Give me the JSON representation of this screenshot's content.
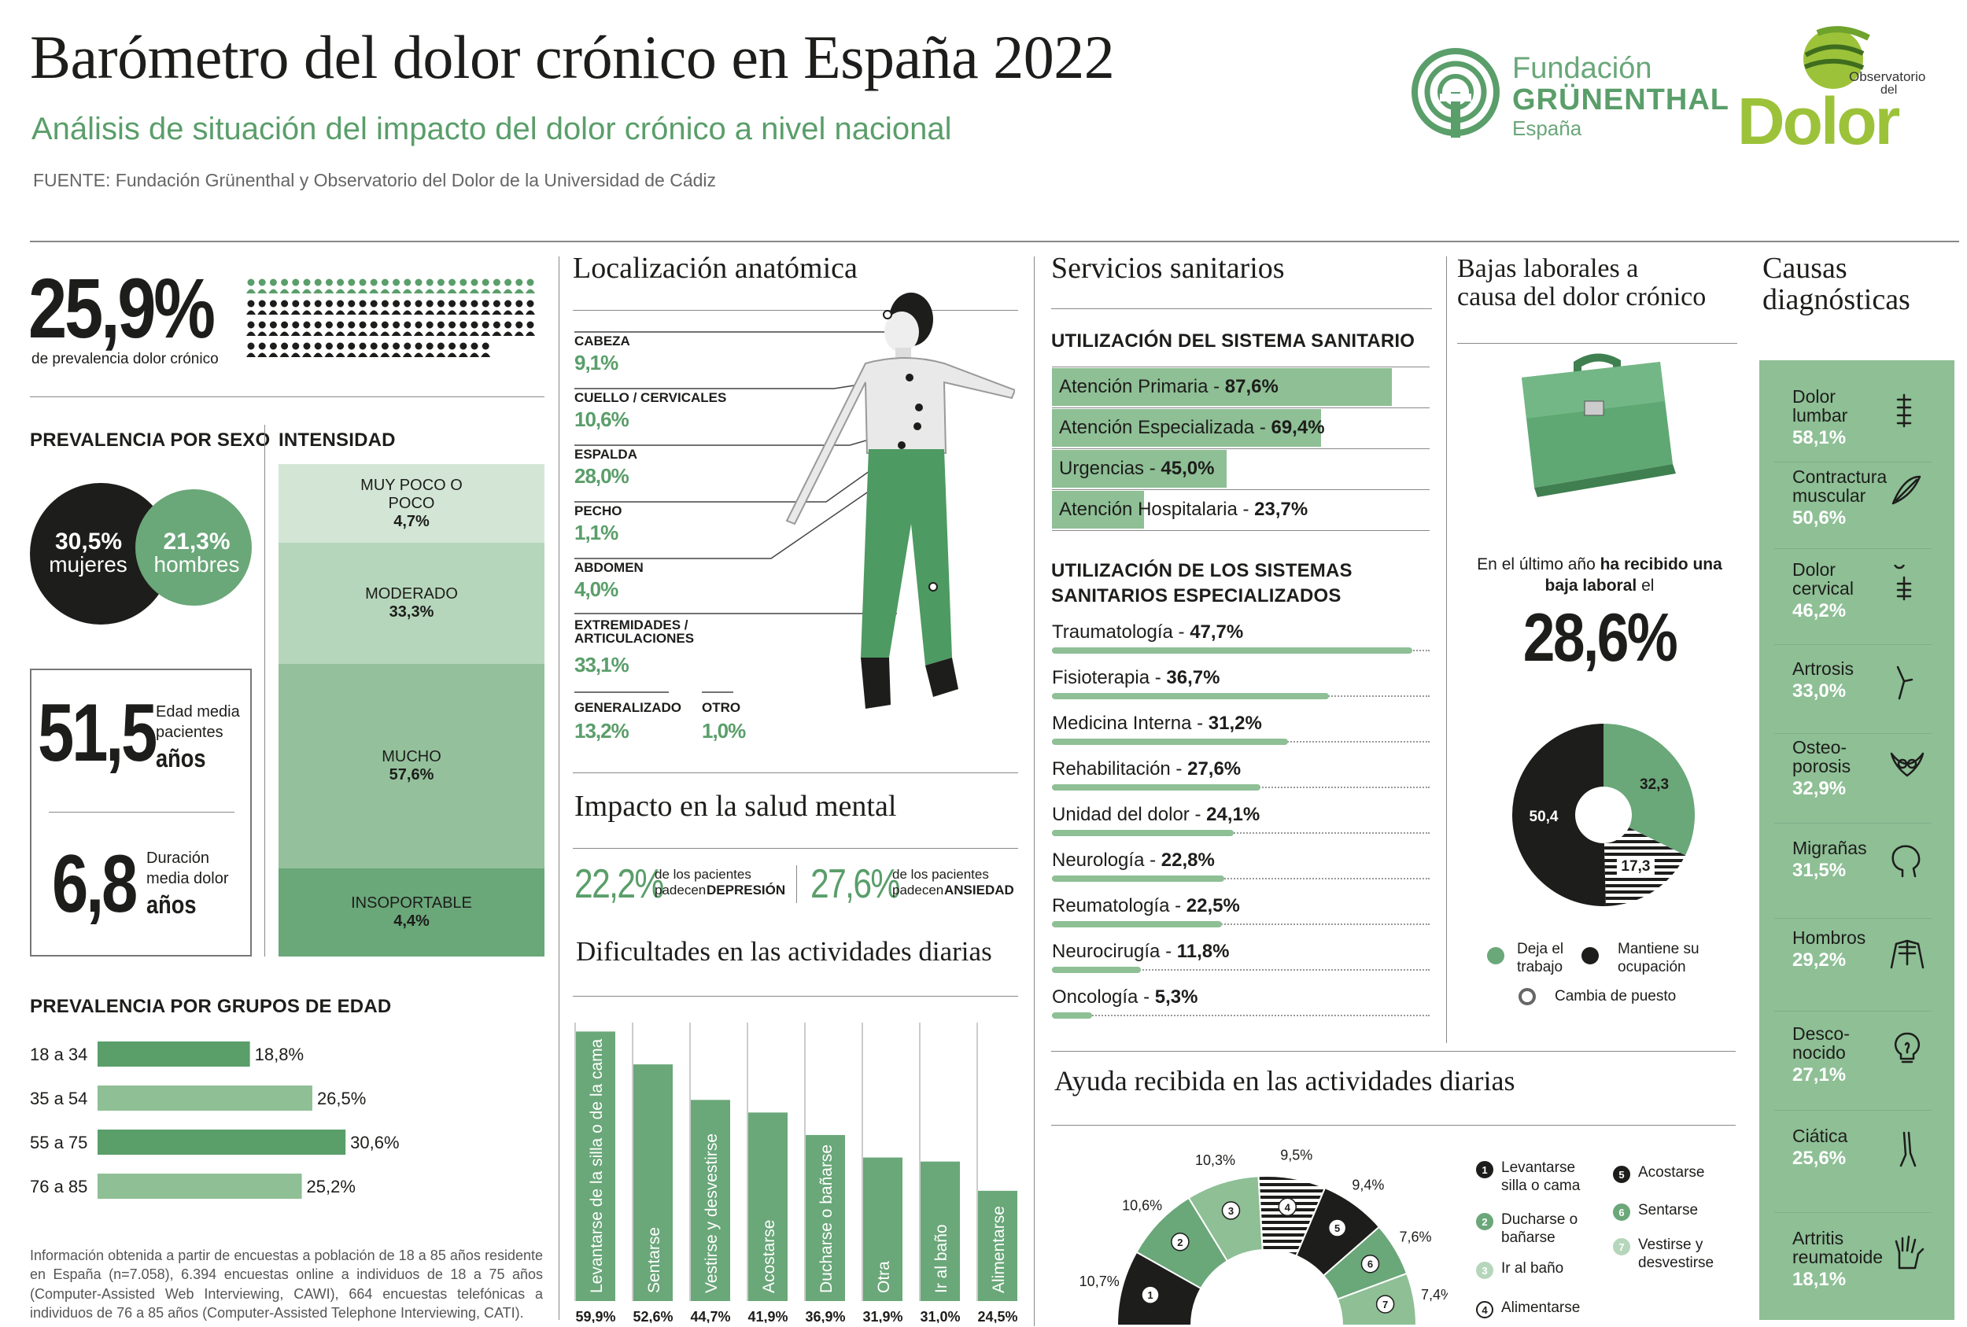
{
  "header": {
    "title": "Barómetro del dolor crónico en España 2022",
    "subtitle": "Análisis de situación del impacto del dolor crónico a nivel nacional",
    "source": "FUENTE: Fundación Grünenthal y Observatorio del Dolor de la Universidad de Cádiz",
    "logo_fundacion": [
      "Fundación",
      "GRÜNENTHAL",
      "España"
    ],
    "logo_observatorio": [
      "Observatorio",
      "del",
      "Dolor"
    ]
  },
  "prevalence": {
    "value": "25,9%",
    "label": "de prevalencia dolor crónico",
    "icons_total": 100,
    "icons_green": 26
  },
  "sex": {
    "heading": "PREVALENCIA POR SEXO",
    "women_value": "30,5%",
    "women_label": "mujeres",
    "men_value": "21,3%",
    "men_label": "hombres"
  },
  "intensity": {
    "heading": "INTENSIDAD",
    "levels": [
      {
        "label": "MUY POCO O POCO",
        "value": "4,7%"
      },
      {
        "label": "MODERADO",
        "value": "33,3%"
      },
      {
        "label": "MUCHO",
        "value": "57,6%"
      },
      {
        "label": "INSOPORTABLE",
        "value": "4,4%"
      }
    ]
  },
  "stats": {
    "age_value": "51,5",
    "age_label": [
      "Edad media",
      "pacientes",
      "años"
    ],
    "duration_value": "6,8",
    "duration_label": [
      "Duración",
      "media dolor",
      "años"
    ]
  },
  "age_groups": {
    "heading": "PREVALENCIA POR GRUPOS DE EDAD",
    "note": "Información obtenida a partir de encuestas a población de 18 a 85 años residente en España (n=7.058), 6.394 encuestas online a individuos de 18 a 75 años (Computer-Assisted Web Interviewing, CAWI), 664 encuestas telefónicas a individuos de 76 a 85 años (Computer-Assisted Telephone Interviewing, CATI)."
  },
  "anatomy": {
    "heading": "Localización anatómica",
    "items": [
      {
        "label": "CABEZA",
        "value": "9,1%"
      },
      {
        "label": "CUELLO / CERVICALES",
        "value": "10,6%"
      },
      {
        "label": "ESPALDA",
        "value": "28,0%"
      },
      {
        "label": "PECHO",
        "value": "1,1%"
      },
      {
        "label": "ABDOMEN",
        "value": "4,0%"
      },
      {
        "label": "EXTREMIDADES / ARTICULACIONES",
        "value": "33,1%"
      },
      {
        "label": "GENERALIZADO",
        "value": "13,2%"
      },
      {
        "label": "OTRO",
        "value": "1,0%"
      }
    ]
  },
  "mental": {
    "heading": "Impacto en la salud mental",
    "depression_value": "22,2%",
    "depression_label": [
      "de los pacientes",
      "padecen",
      "DEPRESIÓN"
    ],
    "anxiety_value": "27,6%",
    "anxiety_label": [
      "de los pacientes",
      "padecen",
      "ANSIEDAD"
    ]
  },
  "difficulties": {
    "heading": "Dificultades en las actividades diarias"
  },
  "services": {
    "heading": "Servicios sanitarios",
    "general_heading": "UTILIZACIÓN DEL SISTEMA SANITARIO",
    "general": [
      {
        "label": "Atención Primaria",
        "value": "87,6%"
      },
      {
        "label": "Atención Especializada",
        "value": "69,4%"
      },
      {
        "label": "Urgencias",
        "value": "45,0%"
      },
      {
        "label": "Atención Hospitalaria",
        "value": "23,7%"
      }
    ],
    "special_heading": [
      "UTILIZACIÓN DE LOS SISTEMAS",
      "SANITARIOS ESPECIALIZADOS"
    ],
    "special": [
      {
        "label": "Traumatología",
        "value": "47,7%"
      },
      {
        "label": "Fisioterapia",
        "value": "36,7%"
      },
      {
        "label": "Medicina Interna",
        "value": "31,2%"
      },
      {
        "label": "Rehabilitación",
        "value": "27,6%"
      },
      {
        "label": "Unidad del dolor",
        "value": "24,1%"
      },
      {
        "label": "Neurología",
        "value": "22,8%"
      },
      {
        "label": "Reumatología",
        "value": "22,5%"
      },
      {
        "label": "Neurocirugía",
        "value": "11,8%"
      },
      {
        "label": "Oncología",
        "value": "5,3%"
      }
    ]
  },
  "leave": {
    "heading": [
      "Bajas laborales a",
      "causa del dolor crónico"
    ],
    "text_pre": "En el último año",
    "text_bold": "ha recibido una baja laboral",
    "text_post": "el",
    "value": "28,6%",
    "legend": [
      "Deja el trabajo",
      "Mantiene su ocupación",
      "Cambia de puesto"
    ]
  },
  "help": {
    "heading": "Ayuda recibida en las actividades diarias",
    "legend": [
      {
        "n": "1",
        "label": "Levantarse silla o cama"
      },
      {
        "n": "2",
        "label": "Ducharse o bañarse"
      },
      {
        "n": "3",
        "label": "Ir al baño"
      },
      {
        "n": "4",
        "label": "Alimentarse"
      },
      {
        "n": "5",
        "label": "Acostarse"
      },
      {
        "n": "6",
        "label": "Sentarse"
      },
      {
        "n": "7",
        "label": "Vestirse y desvestirse"
      }
    ]
  },
  "causes": {
    "heading": [
      "Causas",
      "diagnósticas"
    ],
    "items": [
      {
        "label": "Dolor lumbar",
        "value": "58,1%",
        "icon": "spine-icon"
      },
      {
        "label": "Contractura muscular",
        "value": "50,6%",
        "icon": "muscle-icon"
      },
      {
        "label": "Dolor cervical",
        "value": "46,2%",
        "icon": "neck-icon"
      },
      {
        "label": "Artrosis",
        "value": "33,0%",
        "icon": "knee-icon"
      },
      {
        "label": "Osteo- porosis",
        "value": "32,9%",
        "icon": "pelvis-icon"
      },
      {
        "label": "Migrañas",
        "value": "31,5%",
        "icon": "head-icon"
      },
      {
        "label": "Hombros",
        "value": "29,2%",
        "icon": "shoulders-icon"
      },
      {
        "label": "Desco- nocido",
        "value": "27,1%",
        "icon": "lightbulb-icon"
      },
      {
        "label": "Ciática",
        "value": "25,6%",
        "icon": "leg-icon"
      },
      {
        "label": "Artritis reumatoide",
        "value": "18,1%",
        "icon": "hand-icon"
      }
    ]
  },
  "colors": {
    "green": "#5a9e6a",
    "green_light": "#8ebf95",
    "green_pale": "#d3e6d6",
    "dark": "#1d1d1b"
  },
  "chart_data": [
    {
      "type": "bar",
      "title": "PREVALENCIA POR GRUPOS DE EDAD",
      "categories": [
        "18 a 34",
        "35 a 54",
        "55 a 75",
        "76 a 85"
      ],
      "values": [
        18.8,
        26.5,
        30.6,
        25.2
      ],
      "labels": [
        "18,8%",
        "26,5%",
        "30,6%",
        "25,2%"
      ],
      "orientation": "horizontal"
    },
    {
      "type": "bar",
      "title": "Dificultades en las actividades diarias",
      "categories": [
        "Levantarse de la silla o de la cama",
        "Sentarse",
        "Vestirse y desvestirse",
        "Acostarse",
        "Ducharse o bañarse",
        "Otra",
        "Ir al baño",
        "Alimentarse"
      ],
      "values": [
        59.9,
        52.6,
        44.7,
        41.9,
        36.9,
        31.9,
        31.0,
        24.5
      ],
      "labels": [
        "59,9%",
        "52,6%",
        "44,7%",
        "41,9%",
        "36,9%",
        "31,9%",
        "31,0%",
        "24,5%"
      ]
    },
    {
      "type": "pie",
      "title": "Bajas laborales",
      "categories": [
        "Deja el trabajo",
        "Mantiene su ocupación",
        "Cambia de puesto"
      ],
      "values": [
        32.3,
        50.4,
        17.3
      ],
      "labels": [
        "32,3",
        "50,4",
        "17,3"
      ]
    },
    {
      "type": "pie",
      "title": "Ayuda recibida en las actividades diarias",
      "categories": [
        "Levantarse silla o cama",
        "Ducharse o bañarse",
        "Ir al baño",
        "Alimentarse",
        "Acostarse",
        "Sentarse",
        "Vestirse y desvestirse"
      ],
      "values": [
        10.7,
        10.6,
        10.3,
        9.5,
        9.4,
        7.6,
        7.4
      ],
      "labels": [
        "10,7%",
        "10,6%",
        "10,3%",
        "9,5%",
        "9,4%",
        "7,6%",
        "7,4%"
      ]
    }
  ]
}
